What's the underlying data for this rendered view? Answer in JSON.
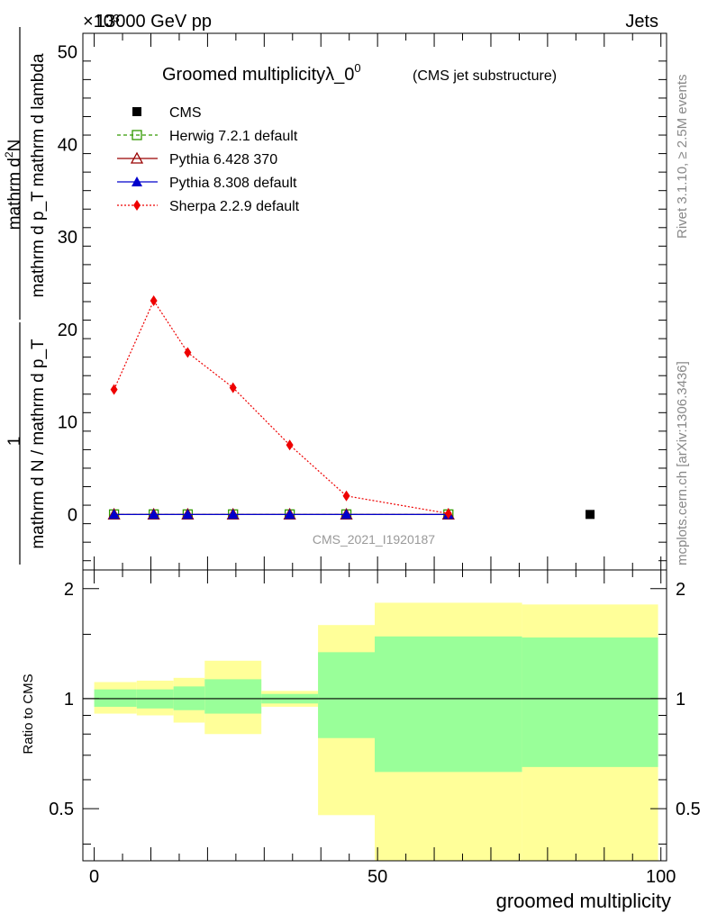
{
  "header": {
    "left": "13000 GeV pp",
    "right": "Jets",
    "exponent": "×10³"
  },
  "side_labels": {
    "rivet": "Rivet 3.1.10, ≥ 2.5M events",
    "mcplots": "mcplots.cern.ch [arXiv:1306.3436]"
  },
  "chart_data": [
    {
      "type": "line",
      "title": "Groomed multiplicityλ_0",
      "title_sup": "0",
      "subtitle": "(CMS jet substructure)",
      "watermark": "CMS_2021_I1920187",
      "ylabel_numerator": "mathrm d²N",
      "ylabel_numerator_main": "mathrm d",
      "ylabel_numerator_sup": "2",
      "ylabel_numerator_tail": "N",
      "ylabel_denominator": "mathrm d p_T mathrm d lambda",
      "ylabel_prefactor": "1",
      "ylabel_prefactor_den": "mathrm d N / mathrm d p_T",
      "y_scale_note": "×10³",
      "xlim": [
        -2,
        101
      ],
      "ylim": [
        -6,
        52
      ],
      "yticks": [
        0,
        10,
        20,
        30,
        40,
        50
      ],
      "yticklabels": [
        "0",
        "10",
        "20",
        "30",
        "40",
        "50"
      ],
      "legend_position": "top-left",
      "series": [
        {
          "name": "CMS",
          "color": "#000000",
          "marker": "square-filled",
          "x": [
            87.5
          ],
          "y": [
            0
          ]
        },
        {
          "name": "Herwig 7.2.1 default",
          "color": "#339900",
          "marker": "square-open",
          "dash": "4,3",
          "x": [
            3.5,
            10.5,
            16.5,
            24.5,
            34.5,
            44.5,
            62.5
          ],
          "y": [
            0,
            0,
            0,
            0,
            0,
            0,
            0
          ]
        },
        {
          "name": "Pythia 6.428 370",
          "color": "#990000",
          "marker": "triangle-open",
          "dash": "",
          "x": [
            3.5,
            10.5,
            16.5,
            24.5,
            34.5,
            44.5,
            62.5
          ],
          "y": [
            0,
            0,
            0,
            0,
            0,
            0,
            0
          ]
        },
        {
          "name": "Pythia 8.308 default",
          "color": "#0000cc",
          "marker": "triangle-filled",
          "dash": "",
          "x": [
            3.5,
            10.5,
            16.5,
            24.5,
            34.5,
            44.5,
            62.5
          ],
          "y": [
            0,
            0,
            0,
            0,
            0,
            0,
            0
          ]
        },
        {
          "name": "Sherpa 2.2.9 default",
          "color": "#ee0000",
          "marker": "diamond-filled",
          "dash": "2,2",
          "x": [
            3.5,
            10.5,
            16.5,
            24.5,
            34.5,
            44.5,
            62.5
          ],
          "y": [
            13.5,
            23.1,
            17.5,
            13.7,
            7.5,
            2.0,
            0.1
          ]
        }
      ]
    },
    {
      "type": "area",
      "ylabel": "Ratio to CMS",
      "xlabel": "groomed multiplicity",
      "xlim": [
        -2,
        101
      ],
      "ylim": [
        0.36,
        2.25
      ],
      "xticks": [
        0,
        50,
        100
      ],
      "xticklabels": [
        "0",
        "50",
        "100"
      ],
      "yticks": [
        0.5,
        1,
        2
      ],
      "yticklabels": [
        "0.5",
        "1",
        "2"
      ],
      "reference_line": 1,
      "bins": [
        {
          "x0": 0,
          "x1": 7.5,
          "yellow": [
            0.91,
            1.11
          ],
          "green": [
            0.95,
            1.06
          ]
        },
        {
          "x0": 7.5,
          "x1": 14,
          "yellow": [
            0.9,
            1.12
          ],
          "green": [
            0.94,
            1.06
          ]
        },
        {
          "x0": 14,
          "x1": 19.5,
          "yellow": [
            0.86,
            1.14
          ],
          "green": [
            0.93,
            1.08
          ]
        },
        {
          "x0": 19.5,
          "x1": 29.5,
          "yellow": [
            0.8,
            1.27
          ],
          "green": [
            0.91,
            1.13
          ]
        },
        {
          "x0": 29.5,
          "x1": 39.5,
          "yellow": [
            0.95,
            1.05
          ],
          "green": [
            0.97,
            1.03
          ]
        },
        {
          "x0": 39.5,
          "x1": 49.5,
          "yellow": [
            0.48,
            1.59
          ],
          "green": [
            0.78,
            1.34
          ]
        },
        {
          "x0": 49.5,
          "x1": 75.5,
          "yellow": [
            0.36,
            1.83
          ],
          "green": [
            0.63,
            1.48
          ]
        },
        {
          "x0": 75.5,
          "x1": 99.5,
          "yellow": [
            0.36,
            1.81
          ],
          "green": [
            0.65,
            1.47
          ]
        }
      ],
      "colors": {
        "yellow": "#ffff99",
        "green": "#99ff99"
      }
    }
  ]
}
